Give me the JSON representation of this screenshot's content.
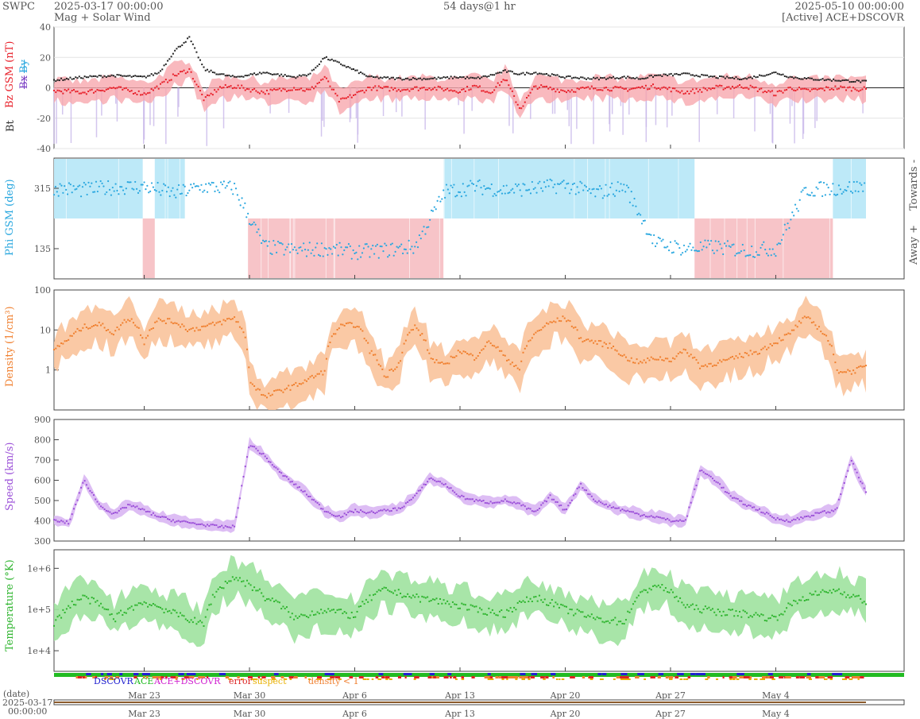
{
  "header": {
    "org": "SWPC",
    "start": "2025-03-17 00:00:00",
    "subtitle": "Mag + Solar Wind",
    "span": "54 days@1 hr",
    "end": "2025-05-10 00:00:00",
    "source": "[Active] ACE+DSCOVR"
  },
  "colors": {
    "bt": "#222222",
    "bz": "#e8202a",
    "by": "#7b3fc4",
    "phi": "#29a7df",
    "density": "#f08030",
    "speed": "#9b50d8",
    "temp": "#2fb52f",
    "towards": "#bde9f8",
    "away": "#f7c4c8"
  },
  "chart_data": [
    {
      "type": "line",
      "panel": "mag",
      "ylabels": [
        "Bt",
        "Bz GSM (nT)",
        "Bx",
        "By"
      ],
      "ylim": [
        -40,
        40
      ],
      "yticks": [
        "40",
        "20",
        "0",
        "-20",
        "-40"
      ],
      "series": [
        {
          "name": "Bt",
          "x": [
            0,
            2,
            4,
            6,
            7,
            8,
            9,
            10,
            11,
            12,
            14,
            16,
            17,
            18,
            19,
            21,
            23,
            25,
            27,
            28,
            29,
            30,
            31,
            32,
            34,
            36,
            38,
            39,
            40,
            42,
            44,
            46,
            48,
            49,
            50,
            52,
            54
          ],
          "values": [
            5,
            7,
            8,
            7,
            10,
            24,
            33,
            12,
            9,
            7,
            10,
            7,
            9,
            20,
            16,
            7,
            6,
            6,
            7,
            6,
            8,
            11,
            9,
            10,
            7,
            6,
            7,
            6,
            8,
            9,
            7,
            6,
            10,
            7,
            6,
            5,
            4
          ]
        },
        {
          "name": "Bz GSM",
          "x": [
            0,
            2,
            4,
            6,
            7,
            8,
            9,
            10,
            11,
            12,
            14,
            16,
            17,
            18,
            19,
            21,
            23,
            25,
            27,
            28,
            29,
            30,
            31,
            32,
            34,
            36,
            38,
            39,
            40,
            42,
            44,
            46,
            48,
            49,
            50,
            52,
            54
          ],
          "values": [
            -2,
            -3,
            0,
            -4,
            1,
            8,
            12,
            -8,
            0,
            1,
            -3,
            0,
            -2,
            7,
            -9,
            0,
            -1,
            0,
            -2,
            1,
            -3,
            6,
            -14,
            1,
            -2,
            0,
            -1,
            0,
            1,
            -3,
            0,
            1,
            -4,
            0,
            -2,
            0,
            -1
          ]
        }
      ]
    },
    {
      "type": "scatter",
      "panel": "phi",
      "ylabel": "Phi GSM (deg)",
      "yticks": [
        "315",
        "135"
      ],
      "side_labels": [
        "Towards -",
        "Away +"
      ],
      "sectors": [
        {
          "start": 0,
          "end": 5.9,
          "side": "towards"
        },
        {
          "start": 5.9,
          "end": 6.7,
          "side": "away"
        },
        {
          "start": 6.7,
          "end": 8.7,
          "side": "towards"
        },
        {
          "start": 12.9,
          "end": 25.9,
          "side": "away"
        },
        {
          "start": 25.9,
          "end": 42.6,
          "side": "towards"
        },
        {
          "start": 42.6,
          "end": 51.8,
          "side": "away"
        },
        {
          "start": 51.8,
          "end": 54,
          "side": "towards"
        }
      ],
      "x": [
        0,
        2,
        4,
        6,
        8,
        10,
        12,
        14,
        16,
        18,
        20,
        22,
        24,
        26,
        28,
        30,
        32,
        34,
        36,
        38,
        40,
        42,
        44,
        46,
        48,
        50,
        52,
        54
      ],
      "values": [
        315,
        310,
        318,
        320,
        300,
        320,
        315,
        140,
        130,
        135,
        125,
        130,
        140,
        305,
        320,
        310,
        315,
        325,
        300,
        320,
        150,
        135,
        140,
        130,
        135,
        310,
        315,
        320
      ]
    },
    {
      "type": "line",
      "panel": "density",
      "ylabel": "Density (1/cm³)",
      "scale": "log",
      "ylim": [
        0.1,
        100
      ],
      "yticks": [
        "100",
        "10",
        "1"
      ],
      "x": [
        0,
        1,
        2,
        3,
        4,
        5,
        6,
        7,
        8,
        9,
        10,
        11,
        12,
        13,
        14,
        15,
        16,
        17,
        18,
        19,
        20,
        21,
        22,
        23,
        24,
        25,
        26,
        27,
        28,
        29,
        30,
        31,
        32,
        33,
        34,
        35,
        36,
        37,
        38,
        39,
        40,
        41,
        42,
        43,
        44,
        45,
        46,
        47,
        48,
        49,
        50,
        51,
        52,
        53,
        54
      ],
      "values": [
        3,
        6,
        12,
        14,
        8,
        20,
        5,
        18,
        16,
        10,
        12,
        15,
        20,
        0.5,
        0.2,
        0.3,
        0.4,
        0.6,
        0.9,
        12,
        14,
        3,
        0.6,
        1.5,
        12,
        2,
        1.2,
        3,
        2,
        5,
        2,
        1,
        8,
        15,
        20,
        6,
        5,
        4,
        2,
        1.5,
        2,
        1.8,
        3,
        1.2,
        1.5,
        1.8,
        2.5,
        3,
        5,
        8,
        20,
        10,
        1,
        0.9,
        1.2
      ]
    },
    {
      "type": "line",
      "panel": "speed",
      "ylabel": "Speed (km/s)",
      "ylim": [
        300,
        900
      ],
      "yticks": [
        "900",
        "800",
        "700",
        "600",
        "500",
        "400",
        "300"
      ],
      "x": [
        0,
        1,
        2,
        3,
        4,
        5,
        6,
        7,
        8,
        9,
        10,
        11,
        12,
        13,
        14,
        15,
        16,
        17,
        18,
        19,
        20,
        21,
        22,
        23,
        24,
        25,
        26,
        27,
        28,
        29,
        30,
        31,
        32,
        33,
        34,
        35,
        36,
        37,
        38,
        39,
        40,
        41,
        42,
        43,
        44,
        45,
        46,
        47,
        48,
        49,
        50,
        51,
        52,
        53,
        54
      ],
      "values": [
        400,
        390,
        600,
        480,
        430,
        480,
        450,
        420,
        400,
        390,
        380,
        370,
        370,
        780,
        720,
        640,
        580,
        520,
        450,
        420,
        450,
        440,
        450,
        460,
        520,
        610,
        580,
        520,
        500,
        490,
        500,
        480,
        440,
        520,
        450,
        580,
        500,
        470,
        450,
        430,
        420,
        400,
        400,
        650,
        600,
        520,
        480,
        450,
        410,
        400,
        420,
        440,
        450,
        700,
        540
      ]
    },
    {
      "type": "line",
      "panel": "temperature",
      "ylabel": "Temperature (°K)",
      "scale": "log",
      "yticks": [
        "1e+6",
        "1e+5",
        "1e+4"
      ],
      "x": [
        0,
        2,
        4,
        6,
        8,
        10,
        12,
        14,
        16,
        18,
        20,
        22,
        24,
        26,
        28,
        30,
        32,
        34,
        36,
        38,
        40,
        42,
        44,
        46,
        48,
        50,
        52,
        54
      ],
      "values": [
        40000,
        200000,
        60000,
        150000,
        80000,
        40000,
        600000,
        200000,
        60000,
        100000,
        70000,
        300000,
        200000,
        150000,
        100000,
        80000,
        200000,
        100000,
        60000,
        50000,
        400000,
        120000,
        90000,
        80000,
        60000,
        200000,
        300000,
        150000
      ]
    }
  ],
  "status_legend": [
    "DSCOVR",
    "ACE",
    "ACE+DSCOVR",
    "error",
    "suspect",
    "density < 1"
  ],
  "date_axis": {
    "label": "(date)",
    "start_date": "2025-03-17",
    "start_time": "00:00:00",
    "ticks": [
      "Mar 23",
      "Mar 30",
      "Apr 6",
      "Apr 13",
      "Apr 20",
      "Apr 27",
      "May 4"
    ]
  }
}
